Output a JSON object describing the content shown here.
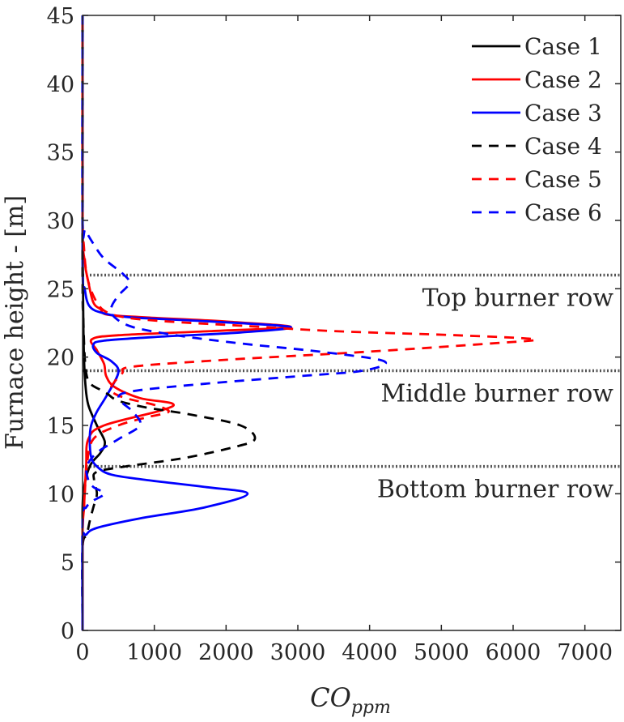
{
  "chart_data": {
    "type": "line",
    "title": "",
    "xlabel_main": "CO",
    "xlabel_sub": "ppm",
    "ylabel": "Furnace height - [m]",
    "xlim": [
      0,
      7500
    ],
    "ylim": [
      0,
      45
    ],
    "xticks": [
      0,
      1000,
      2000,
      3000,
      4000,
      5000,
      6000,
      7000
    ],
    "yticks": [
      0,
      5,
      10,
      15,
      20,
      25,
      30,
      35,
      40,
      45
    ],
    "grid": false,
    "legend_position": "top-right",
    "reference_lines": [
      {
        "y": 26,
        "label": "Top burner row"
      },
      {
        "y": 19,
        "label": "Middle burner row"
      },
      {
        "y": 12,
        "label": "Bottom burner row"
      }
    ],
    "series": [
      {
        "name": "Case 1",
        "color": "#000000",
        "dash": "solid",
        "points": [
          [
            0,
            0
          ],
          [
            0,
            7
          ],
          [
            10,
            10
          ],
          [
            100,
            12
          ],
          [
            250,
            13
          ],
          [
            310,
            13.8
          ],
          [
            200,
            15
          ],
          [
            80,
            16.5
          ],
          [
            40,
            18
          ],
          [
            20,
            20
          ],
          [
            10,
            23
          ],
          [
            5,
            26
          ],
          [
            0,
            30
          ],
          [
            0,
            45
          ]
        ]
      },
      {
        "name": "Case 2",
        "color": "#ff0000",
        "dash": "solid",
        "points": [
          [
            0,
            0
          ],
          [
            0,
            7
          ],
          [
            20,
            9
          ],
          [
            50,
            12
          ],
          [
            80,
            14
          ],
          [
            300,
            15
          ],
          [
            1100,
            16.1
          ],
          [
            1250,
            16.6
          ],
          [
            800,
            17
          ],
          [
            450,
            17.8
          ],
          [
            330,
            18.6
          ],
          [
            300,
            19.5
          ],
          [
            200,
            20.5
          ],
          [
            130,
            21.3
          ],
          [
            500,
            21.6
          ],
          [
            1800,
            21.9
          ],
          [
            2900,
            22.2
          ],
          [
            2000,
            22.6
          ],
          [
            900,
            22.9
          ],
          [
            350,
            23.1
          ],
          [
            250,
            23.5
          ],
          [
            150,
            24
          ],
          [
            80,
            25.5
          ],
          [
            30,
            27
          ],
          [
            0,
            30
          ],
          [
            0,
            45
          ]
        ]
      },
      {
        "name": "Case 3",
        "color": "#0000ff",
        "dash": "solid",
        "points": [
          [
            0,
            0
          ],
          [
            0,
            6.5
          ],
          [
            50,
            7
          ],
          [
            200,
            7.5
          ],
          [
            800,
            8.2
          ],
          [
            1700,
            9
          ],
          [
            2300,
            10
          ],
          [
            1700,
            10.5
          ],
          [
            900,
            11
          ],
          [
            400,
            11.4
          ],
          [
            200,
            12
          ],
          [
            120,
            12.7
          ],
          [
            100,
            14
          ],
          [
            120,
            15
          ],
          [
            200,
            16
          ],
          [
            350,
            17.3
          ],
          [
            500,
            18.9
          ],
          [
            400,
            19.7
          ],
          [
            200,
            20.3
          ],
          [
            150,
            20.9
          ],
          [
            300,
            21.2
          ],
          [
            1100,
            21.5
          ],
          [
            2200,
            21.8
          ],
          [
            2900,
            22.2
          ],
          [
            1800,
            22.6
          ],
          [
            700,
            22.9
          ],
          [
            300,
            23.2
          ],
          [
            100,
            23.7
          ],
          [
            30,
            25
          ],
          [
            0,
            27
          ],
          [
            0,
            45
          ]
        ]
      },
      {
        "name": "Case 4",
        "color": "#000000",
        "dash": "dashed",
        "points": [
          [
            0,
            0
          ],
          [
            0,
            6
          ],
          [
            60,
            7
          ],
          [
            100,
            8
          ],
          [
            150,
            9
          ],
          [
            200,
            10
          ],
          [
            160,
            11
          ],
          [
            200,
            11.6
          ],
          [
            600,
            12
          ],
          [
            1400,
            12.6
          ],
          [
            2100,
            13.4
          ],
          [
            2400,
            14
          ],
          [
            2200,
            15
          ],
          [
            1500,
            15.8
          ],
          [
            900,
            16.3
          ],
          [
            500,
            16.8
          ],
          [
            350,
            17.3
          ],
          [
            250,
            17.6
          ],
          [
            120,
            18
          ],
          [
            60,
            18.6
          ],
          [
            30,
            20
          ],
          [
            10,
            23
          ],
          [
            0,
            26
          ],
          [
            0,
            45
          ]
        ]
      },
      {
        "name": "Case 5",
        "color": "#ff0000",
        "dash": "dashed",
        "points": [
          [
            0,
            0
          ],
          [
            0,
            7
          ],
          [
            20,
            9
          ],
          [
            60,
            12
          ],
          [
            150,
            14
          ],
          [
            500,
            15
          ],
          [
            900,
            15.6
          ],
          [
            1200,
            16
          ],
          [
            1000,
            16.5
          ],
          [
            600,
            17
          ],
          [
            400,
            17.5
          ],
          [
            420,
            18
          ],
          [
            550,
            18.8
          ],
          [
            700,
            19.3
          ],
          [
            2000,
            19.8
          ],
          [
            4000,
            20.4
          ],
          [
            5700,
            21
          ],
          [
            6300,
            21.3
          ],
          [
            5200,
            21.6
          ],
          [
            3500,
            21.9
          ],
          [
            2200,
            22.3
          ],
          [
            1200,
            22.6
          ],
          [
            600,
            22.9
          ],
          [
            300,
            23.4
          ],
          [
            150,
            24.5
          ],
          [
            60,
            26
          ],
          [
            20,
            28
          ],
          [
            0,
            31
          ],
          [
            0,
            45
          ]
        ]
      },
      {
        "name": "Case 6",
        "color": "#0000ff",
        "dash": "dashed",
        "points": [
          [
            0,
            0
          ],
          [
            0,
            8
          ],
          [
            50,
            9
          ],
          [
            150,
            9.5
          ],
          [
            300,
            10
          ],
          [
            150,
            10.5
          ],
          [
            80,
            11
          ],
          [
            60,
            12
          ],
          [
            200,
            13
          ],
          [
            500,
            14
          ],
          [
            800,
            15
          ],
          [
            700,
            16
          ],
          [
            500,
            17
          ],
          [
            700,
            17.5
          ],
          [
            1600,
            18
          ],
          [
            3000,
            18.6
          ],
          [
            3900,
            19
          ],
          [
            4200,
            19.7
          ],
          [
            3300,
            20.4
          ],
          [
            2200,
            21
          ],
          [
            1300,
            21.6
          ],
          [
            700,
            22.2
          ],
          [
            450,
            22.9
          ],
          [
            400,
            23.6
          ],
          [
            500,
            24.5
          ],
          [
            650,
            25.4
          ],
          [
            560,
            26.1
          ],
          [
            300,
            27.2
          ],
          [
            150,
            28.3
          ],
          [
            40,
            29.3
          ],
          [
            0,
            30
          ],
          [
            0,
            45
          ]
        ]
      }
    ]
  }
}
